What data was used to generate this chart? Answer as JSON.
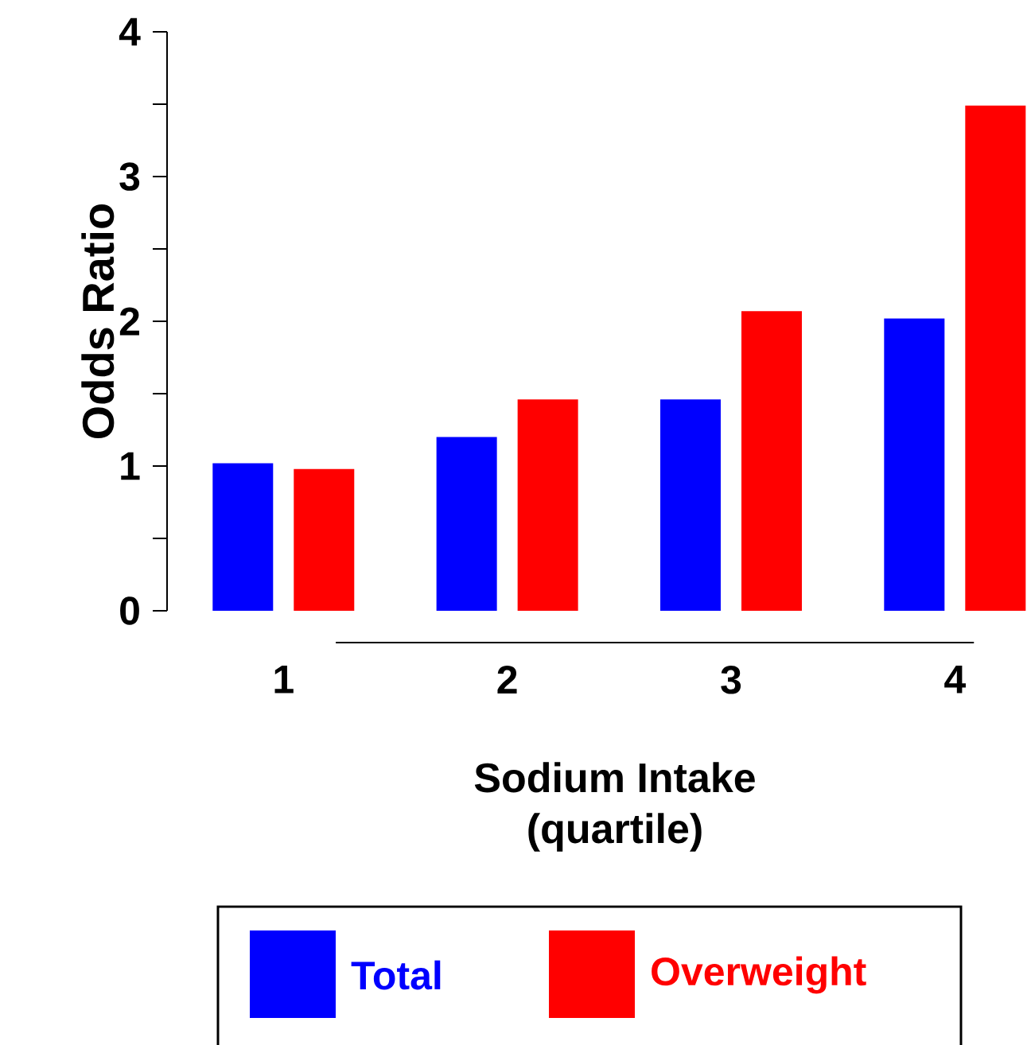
{
  "chart_data": {
    "type": "bar",
    "xlabel": "Sodium Intake\n(quartile)",
    "ylabel": "Odds Ratio",
    "categories": [
      "1",
      "2",
      "3",
      "4"
    ],
    "series": [
      {
        "name": "Total",
        "color": "#0000ff",
        "values": [
          1.02,
          1.2,
          1.46,
          2.02
        ]
      },
      {
        "name": "Overweight",
        "color": "#ff0000",
        "values": [
          0.98,
          1.46,
          2.07,
          3.49
        ]
      }
    ],
    "ylim": [
      0,
      4
    ],
    "yticks": [
      0,
      {
        "value": 0.5,
        "label": null
      },
      1,
      {
        "value": 1.5,
        "label": null
      },
      2,
      {
        "value": 2.5,
        "label": null
      },
      3,
      {
        "value": 3.5,
        "label": null
      },
      4
    ],
    "grid": false,
    "legend": "bottom"
  }
}
